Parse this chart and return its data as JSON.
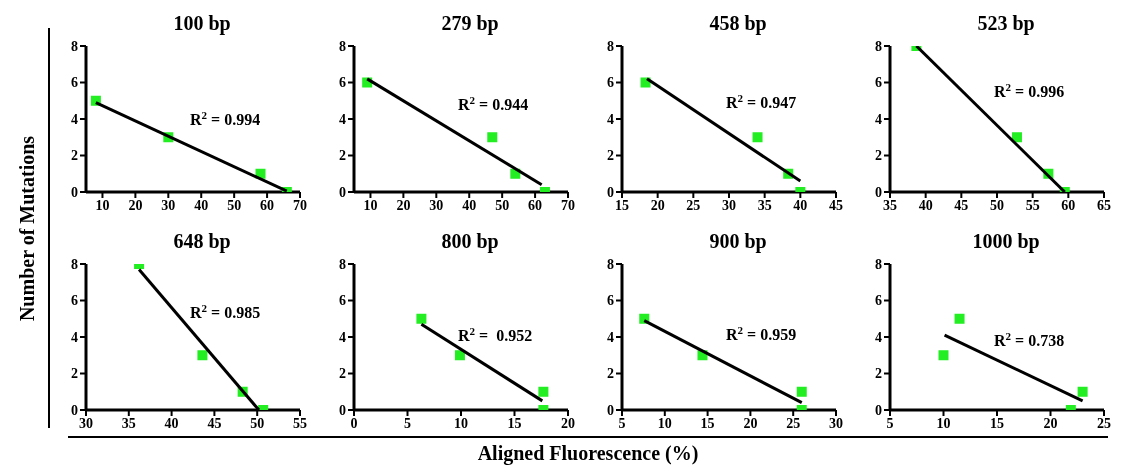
{
  "chart_data": [
    {
      "type": "scatter",
      "title": "100 bp",
      "ylabel": "Number of Mutations",
      "xlim": [
        5,
        70
      ],
      "xticks": [
        10,
        20,
        30,
        40,
        50,
        60,
        70
      ],
      "ylim": [
        0,
        8
      ],
      "yticks": [
        0,
        2,
        4,
        6,
        8
      ],
      "marker": "square",
      "annotations": [
        "R$^{2}$ = 0.994"
      ],
      "series": [
        {
          "color": "#22ee22",
          "x": [
            8,
            30,
            58,
            66
          ],
          "values": [
            5,
            3,
            1,
            0
          ]
        },
        {
          "type": "line",
          "color": "#000000",
          "line_style": "solid",
          "marker": "none",
          "x": [
            8,
            66
          ],
          "values": [
            4.9,
            0.05
          ]
        }
      ]
    },
    {
      "type": "scatter",
      "title": "279 bp",
      "xlim": [
        5,
        70
      ],
      "xticks": [
        10,
        20,
        30,
        40,
        50,
        60,
        70
      ],
      "ylim": [
        0,
        8
      ],
      "yticks": [
        0,
        2,
        4,
        6,
        8
      ],
      "marker": "square",
      "annotations": [
        "R$^{2}$ = 0.944"
      ],
      "series": [
        {
          "color": "#22ee22",
          "x": [
            9,
            47,
            54,
            63
          ],
          "values": [
            6,
            3,
            1,
            0
          ]
        },
        {
          "type": "line",
          "color": "#000000",
          "line_style": "solid",
          "marker": "none",
          "x": [
            9,
            62
          ],
          "values": [
            6.2,
            0.4
          ]
        }
      ]
    },
    {
      "type": "scatter",
      "title": "458 bp",
      "xlim": [
        15,
        45
      ],
      "xticks": [
        15,
        20,
        25,
        30,
        35,
        40,
        45
      ],
      "ylim": [
        0,
        8
      ],
      "yticks": [
        0,
        2,
        4,
        6,
        8
      ],
      "marker": "square",
      "annotations": [
        "R$^{2}$ = 0.947"
      ],
      "series": [
        {
          "color": "#22ee22",
          "x": [
            18.3,
            34,
            38.3,
            40
          ],
          "values": [
            6,
            3,
            1,
            0
          ]
        },
        {
          "type": "line",
          "color": "#000000",
          "line_style": "solid",
          "marker": "none",
          "x": [
            18.5,
            40
          ],
          "values": [
            6.2,
            0.6
          ]
        }
      ]
    },
    {
      "type": "scatter",
      "title": "523 bp",
      "xlim": [
        35,
        65
      ],
      "xticks": [
        35,
        40,
        45,
        50,
        55,
        60,
        65
      ],
      "ylim": [
        0,
        8
      ],
      "yticks": [
        0,
        2,
        4,
        6,
        8
      ],
      "marker": "square",
      "annotations": [
        "R$^{2}$ = 0.996"
      ],
      "series": [
        {
          "color": "#22ee22",
          "x": [
            38.7,
            52.8,
            57.2,
            59.5
          ],
          "values": [
            8,
            3,
            1,
            0
          ]
        },
        {
          "type": "line",
          "color": "#000000",
          "line_style": "solid",
          "marker": "none",
          "x": [
            38.7,
            59.5
          ],
          "values": [
            8,
            0
          ]
        }
      ]
    },
    {
      "type": "scatter",
      "title": "648 bp",
      "xlim": [
        30,
        55
      ],
      "xticks": [
        30,
        35,
        40,
        45,
        50,
        55
      ],
      "ylim": [
        0,
        8
      ],
      "yticks": [
        0,
        2,
        4,
        6,
        8
      ],
      "marker": "square",
      "annotations": [
        "R$^{2}$ = 0.985"
      ],
      "series": [
        {
          "color": "#22ee22",
          "x": [
            36.2,
            43.6,
            48.3,
            50.7
          ],
          "values": [
            8,
            3,
            1,
            0
          ]
        },
        {
          "type": "line",
          "color": "#000000",
          "line_style": "solid",
          "marker": "none",
          "x": [
            36.2,
            50.2
          ],
          "values": [
            7.7,
            0
          ]
        }
      ]
    },
    {
      "type": "scatter",
      "title": "800 bp",
      "xlabel": "Aligned Fluorescence (%)",
      "xlim": [
        0,
        20
      ],
      "xticks": [
        0,
        5,
        10,
        15,
        20
      ],
      "ylim": [
        0,
        8
      ],
      "yticks": [
        0,
        2,
        4,
        6,
        8
      ],
      "marker": "square",
      "annotations": [
        "R$^{2}$ =  0.952"
      ],
      "series": [
        {
          "color": "#22ee22",
          "x": [
            6.3,
            9.9,
            17.7,
            17.7
          ],
          "values": [
            5,
            3,
            1,
            0
          ]
        },
        {
          "type": "line",
          "color": "#000000",
          "line_style": "solid",
          "marker": "none",
          "x": [
            6.3,
            17.6
          ],
          "values": [
            4.7,
            0.5
          ]
        }
      ]
    },
    {
      "type": "scatter",
      "title": "900 bp",
      "xlim": [
        5,
        30
      ],
      "xticks": [
        5,
        10,
        15,
        20,
        25,
        30
      ],
      "ylim": [
        0,
        8
      ],
      "yticks": [
        0,
        2,
        4,
        6,
        8
      ],
      "marker": "square",
      "annotations": [
        "R$^{2}$ = 0.959"
      ],
      "series": [
        {
          "color": "#22ee22",
          "x": [
            7.6,
            14.4,
            26,
            26
          ],
          "values": [
            5,
            3,
            1,
            0
          ]
        },
        {
          "type": "line",
          "color": "#000000",
          "line_style": "solid",
          "marker": "none",
          "x": [
            7.6,
            26
          ],
          "values": [
            4.9,
            0.4
          ]
        }
      ]
    },
    {
      "type": "scatter",
      "title": "1000 bp",
      "xlim": [
        5,
        25
      ],
      "xticks": [
        5,
        10,
        15,
        20,
        25
      ],
      "ylim": [
        0,
        8
      ],
      "yticks": [
        0,
        2,
        4,
        6,
        8
      ],
      "marker": "square",
      "annotations": [
        "R$^{2}$ = 0.738"
      ],
      "series": [
        {
          "color": "#22ee22",
          "x": [
            10,
            11.5,
            23,
            21.9
          ],
          "values": [
            3,
            5,
            1,
            0
          ]
        },
        {
          "type": "line",
          "color": "#000000",
          "line_style": "solid",
          "marker": "none",
          "x": [
            10.1,
            23
          ],
          "values": [
            4.1,
            0.5
          ]
        }
      ]
    }
  ]
}
